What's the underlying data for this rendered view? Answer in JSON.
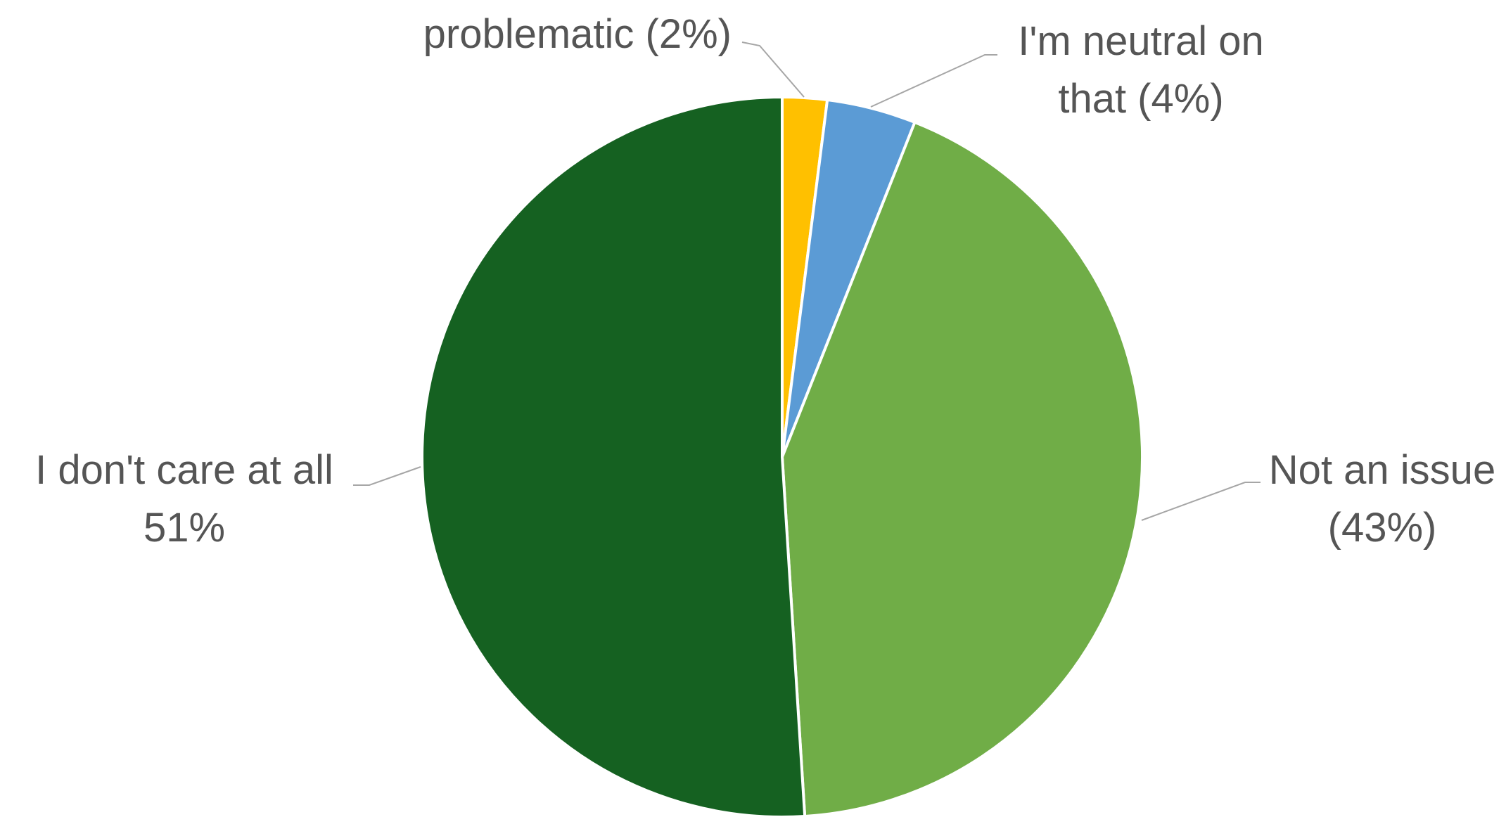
{
  "chart_data": {
    "type": "pie",
    "title": "",
    "slices": [
      {
        "name": "problematic",
        "value": 2,
        "color": "#FFC000",
        "label_lines": [
          "problematic (2%)"
        ]
      },
      {
        "name": "I'm neutral on that",
        "value": 4,
        "color": "#5B9BD5",
        "label_lines": [
          "I'm neutral on",
          "that (4%)"
        ]
      },
      {
        "name": "Not an issue",
        "value": 43,
        "color": "#70AD47",
        "label_lines": [
          "Not an issue",
          "(43%)"
        ]
      },
      {
        "name": "I don't care at all",
        "value": 51,
        "color": "#156121",
        "label_lines": [
          "I don't care at all",
          "51%"
        ]
      }
    ],
    "start_angle": "12 o'clock",
    "direction": "clockwise",
    "legend": "none",
    "leader_lines": true
  }
}
